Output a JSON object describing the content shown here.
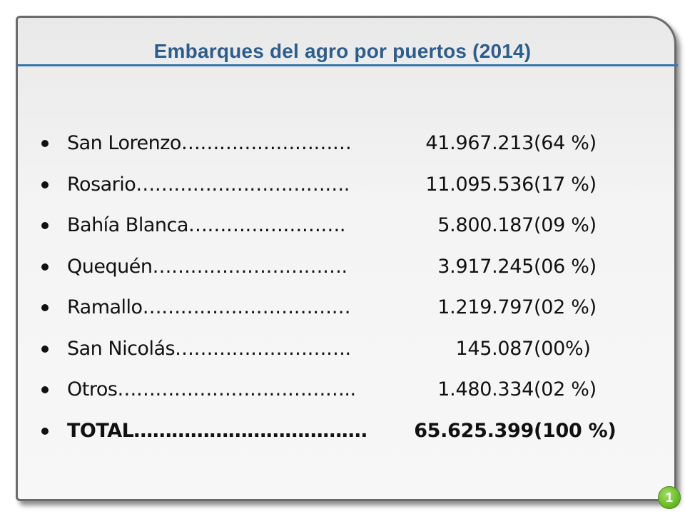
{
  "slide": {
    "title": "Embarques del agro por puertos (2014)",
    "page_number": "1",
    "badge_color": "#6fbf2c",
    "title_color": "#2f5d8a"
  },
  "items": [
    {
      "name": "San Lorenzo………………………",
      "value": "41.967.213",
      "pct": "(64 %)"
    },
    {
      "name": "Rosario…………………………….",
      "value": "11.095.536",
      "pct": "(17 %)"
    },
    {
      "name": "Bahía Blanca…………………….",
      "value": "5.800.187",
      "pct": "(09 %)"
    },
    {
      "name": "Quequén………………………….",
      "value": "3.917.245",
      "pct": "(06 %)"
    },
    {
      "name": "Ramallo……………………………",
      "value": "1.219.797",
      "pct": "(02 %)"
    },
    {
      "name": "San Nicolás……………………….",
      "value": "145.087",
      "pct": "(00%)"
    },
    {
      "name": "Otros………………………………..",
      "value": "1.480.334",
      "pct": "(02 %)"
    },
    {
      "name": "TOTAL……………………………….",
      "value": "65.625.399",
      "pct": "(100 %)",
      "bold": true
    }
  ]
}
